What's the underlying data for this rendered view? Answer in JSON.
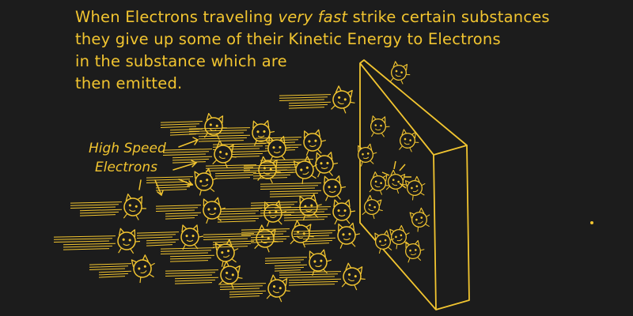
{
  "caption": {
    "line1_a": "When Electrons traveling ",
    "line1_em": "very fast",
    "line1_b": " strike certain substances",
    "line2": "they give up some of their Kinetic Energy to Electrons",
    "line3": "in the substance which are",
    "line4": "then emitted."
  },
  "label": {
    "line1": "High Speed",
    "line2": "Electrons"
  },
  "colors": {
    "background": "#1c1c1c",
    "ink": "#f2c530"
  }
}
